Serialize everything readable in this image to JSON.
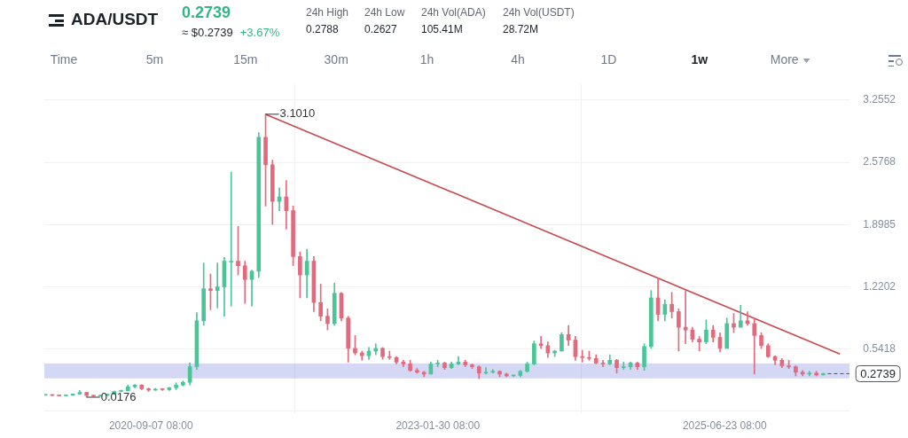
{
  "chart_data": {
    "type": "candlestick",
    "title": "ADA/USDT",
    "subtitle": "0.2739",
    "annotations": [
      "≈ $0.2739",
      "+3.67%",
      "24h High",
      "0.2788",
      "24h Low",
      "0.2627",
      "24h Vol(ADA)",
      "105.41M",
      "24h Vol(USDT)",
      "28.72M",
      "Time",
      "5m",
      "15m",
      "30m",
      "1h",
      "4h",
      "1D",
      "1w",
      "More",
      {
        "text": "3.1010",
        "x": "2021-08-23",
        "y": 3.101
      },
      {
        "text": "0.0176",
        "x": "2020-02-24",
        "y": 0.0176
      }
    ],
    "x": [
      "2019-10-21",
      "2019-11-11",
      "2019-12-02",
      "2019-12-23",
      "2020-01-13",
      "2020-02-03",
      "2020-02-24",
      "2020-03-16",
      "2020-04-06",
      "2020-04-27",
      "2020-05-18",
      "2020-06-08",
      "2020-06-29",
      "2020-07-20",
      "2020-08-10",
      "2020-08-31",
      "2020-09-21",
      "2020-10-12",
      "2020-11-02",
      "2020-11-23",
      "2020-12-14",
      "2021-01-04",
      "2021-01-25",
      "2021-02-15",
      "2021-03-08",
      "2021-03-29",
      "2021-04-19",
      "2021-05-10",
      "2021-05-31",
      "2021-06-21",
      "2021-07-12",
      "2021-08-02",
      "2021-08-23",
      "2021-09-13",
      "2021-10-04",
      "2021-10-25",
      "2021-11-15",
      "2021-12-06",
      "2021-12-27",
      "2022-01-17",
      "2022-02-07",
      "2022-02-28",
      "2022-03-21",
      "2022-04-11",
      "2022-05-02",
      "2022-05-23",
      "2022-06-13",
      "2022-07-04",
      "2022-07-25",
      "2022-08-15",
      "2022-09-05",
      "2022-09-26",
      "2022-10-17",
      "2022-11-07",
      "2022-11-28",
      "2022-12-19",
      "2023-01-09",
      "2023-01-30",
      "2023-02-20",
      "2023-03-13",
      "2023-04-03",
      "2023-04-24",
      "2023-05-15",
      "2023-06-05",
      "2023-06-26",
      "2023-07-17",
      "2023-08-07",
      "2023-08-28",
      "2023-09-18",
      "2023-10-09",
      "2023-10-30",
      "2023-11-20",
      "2023-12-11",
      "2024-01-01",
      "2024-01-22",
      "2024-02-12",
      "2024-03-04",
      "2024-03-25",
      "2024-04-15",
      "2024-05-06",
      "2024-05-27",
      "2024-06-17",
      "2024-07-08",
      "2024-07-29",
      "2024-08-19",
      "2024-09-09",
      "2024-09-30",
      "2024-10-21",
      "2024-11-11",
      "2024-12-02",
      "2024-12-23",
      "2025-01-13",
      "2025-02-03",
      "2025-02-24",
      "2025-03-17",
      "2025-04-07",
      "2025-04-28",
      "2025-05-19",
      "2025-06-09",
      "2025-06-30",
      "2025-07-21",
      "2025-08-11",
      "2025-09-01",
      "2025-09-22",
      "2025-10-13",
      "2025-11-03",
      "2025-11-24",
      "2025-12-15",
      "2026-01-05",
      "2026-01-26",
      "2026-02-16",
      "2026-03-09",
      "2026-03-30",
      "2026-04-20"
    ],
    "ohlc": [
      [
        0.04,
        0.046,
        0.037,
        0.042
      ],
      [
        0.042,
        0.045,
        0.035,
        0.037
      ],
      [
        0.037,
        0.04,
        0.032,
        0.033
      ],
      [
        0.033,
        0.04,
        0.032,
        0.038
      ],
      [
        0.038,
        0.055,
        0.037,
        0.052
      ],
      [
        0.052,
        0.089,
        0.05,
        0.07
      ],
      [
        0.07,
        0.072,
        0.0176,
        0.036
      ],
      [
        0.036,
        0.037,
        0.026,
        0.03
      ],
      [
        0.03,
        0.039,
        0.029,
        0.036
      ],
      [
        0.036,
        0.053,
        0.035,
        0.05
      ],
      [
        0.05,
        0.085,
        0.048,
        0.08
      ],
      [
        0.08,
        0.096,
        0.076,
        0.087
      ],
      [
        0.087,
        0.15,
        0.085,
        0.131
      ],
      [
        0.131,
        0.156,
        0.12,
        0.15
      ],
      [
        0.15,
        0.155,
        0.1,
        0.11
      ],
      [
        0.11,
        0.118,
        0.08,
        0.095
      ],
      [
        0.095,
        0.115,
        0.092,
        0.105
      ],
      [
        0.105,
        0.112,
        0.09,
        0.1
      ],
      [
        0.1,
        0.125,
        0.092,
        0.121
      ],
      [
        0.121,
        0.175,
        0.1,
        0.15
      ],
      [
        0.15,
        0.193,
        0.14,
        0.18
      ],
      [
        0.18,
        0.39,
        0.15,
        0.35
      ],
      [
        0.35,
        0.94,
        0.32,
        0.85
      ],
      [
        0.85,
        1.48,
        0.8,
        1.2
      ],
      [
        1.2,
        1.36,
        0.97,
        1.18
      ],
      [
        1.18,
        1.48,
        0.99,
        1.22
      ],
      [
        1.22,
        1.54,
        0.9,
        1.5
      ],
      [
        1.5,
        2.47,
        1.01,
        1.5
      ],
      [
        1.5,
        1.88,
        1.35,
        1.45
      ],
      [
        1.45,
        1.5,
        1.04,
        1.3
      ],
      [
        1.3,
        1.4,
        1.01,
        1.39
      ],
      [
        1.39,
        2.9,
        1.32,
        2.85
      ],
      [
        2.85,
        3.101,
        2.1,
        2.55
      ],
      [
        2.55,
        2.6,
        1.9,
        2.15
      ],
      [
        2.15,
        2.3,
        2.05,
        2.2
      ],
      [
        2.2,
        2.38,
        1.85,
        2.05
      ],
      [
        2.05,
        2.1,
        1.45,
        1.55
      ],
      [
        1.55,
        1.6,
        1.1,
        1.35
      ],
      [
        1.35,
        1.63,
        1.1,
        1.5
      ],
      [
        1.5,
        1.55,
        0.95,
        1.05
      ],
      [
        1.05,
        1.25,
        0.85,
        0.9
      ],
      [
        0.9,
        0.98,
        0.75,
        0.82
      ],
      [
        0.82,
        1.26,
        0.8,
        1.15
      ],
      [
        1.15,
        1.16,
        0.85,
        0.88
      ],
      [
        0.88,
        0.9,
        0.4,
        0.55
      ],
      [
        0.55,
        0.69,
        0.48,
        0.5
      ],
      [
        0.5,
        0.52,
        0.42,
        0.47
      ],
      [
        0.47,
        0.56,
        0.43,
        0.52
      ],
      [
        0.52,
        0.6,
        0.48,
        0.55
      ],
      [
        0.55,
        0.56,
        0.43,
        0.46
      ],
      [
        0.46,
        0.52,
        0.43,
        0.45
      ],
      [
        0.45,
        0.46,
        0.38,
        0.4
      ],
      [
        0.4,
        0.42,
        0.35,
        0.38
      ],
      [
        0.38,
        0.42,
        0.3,
        0.31
      ],
      [
        0.31,
        0.33,
        0.28,
        0.29
      ],
      [
        0.29,
        0.3,
        0.24,
        0.27
      ],
      [
        0.27,
        0.4,
        0.27,
        0.38
      ],
      [
        0.38,
        0.42,
        0.35,
        0.39
      ],
      [
        0.39,
        0.4,
        0.32,
        0.34
      ],
      [
        0.34,
        0.4,
        0.33,
        0.38
      ],
      [
        0.38,
        0.46,
        0.37,
        0.4
      ],
      [
        0.4,
        0.42,
        0.35,
        0.37
      ],
      [
        0.37,
        0.38,
        0.33,
        0.35
      ],
      [
        0.35,
        0.36,
        0.22,
        0.28
      ],
      [
        0.28,
        0.34,
        0.27,
        0.29
      ],
      [
        0.29,
        0.32,
        0.28,
        0.3
      ],
      [
        0.3,
        0.305,
        0.24,
        0.27
      ],
      [
        0.27,
        0.28,
        0.24,
        0.25
      ],
      [
        0.25,
        0.26,
        0.24,
        0.255
      ],
      [
        0.255,
        0.31,
        0.24,
        0.3
      ],
      [
        0.3,
        0.4,
        0.29,
        0.38
      ],
      [
        0.38,
        0.63,
        0.37,
        0.6
      ],
      [
        0.6,
        0.68,
        0.55,
        0.58
      ],
      [
        0.58,
        0.62,
        0.45,
        0.5
      ],
      [
        0.5,
        0.53,
        0.46,
        0.52
      ],
      [
        0.52,
        0.72,
        0.52,
        0.7
      ],
      [
        0.7,
        0.8,
        0.58,
        0.64
      ],
      [
        0.64,
        0.68,
        0.42,
        0.46
      ],
      [
        0.46,
        0.53,
        0.4,
        0.45
      ],
      [
        0.45,
        0.52,
        0.42,
        0.44
      ],
      [
        0.44,
        0.48,
        0.38,
        0.39
      ],
      [
        0.39,
        0.42,
        0.35,
        0.38
      ],
      [
        0.38,
        0.48,
        0.37,
        0.42
      ],
      [
        0.42,
        0.43,
        0.28,
        0.34
      ],
      [
        0.34,
        0.4,
        0.32,
        0.35
      ],
      [
        0.35,
        0.4,
        0.32,
        0.39
      ],
      [
        0.39,
        0.4,
        0.32,
        0.35
      ],
      [
        0.35,
        0.6,
        0.31,
        0.57
      ],
      [
        0.57,
        1.18,
        0.55,
        1.1
      ],
      [
        1.1,
        1.32,
        0.85,
        0.92
      ],
      [
        0.92,
        1.08,
        0.85,
        1.03
      ],
      [
        1.03,
        1.16,
        0.88,
        0.95
      ],
      [
        0.95,
        0.98,
        0.52,
        0.78
      ],
      [
        0.78,
        1.18,
        0.6,
        0.75
      ],
      [
        0.75,
        0.78,
        0.62,
        0.65
      ],
      [
        0.65,
        0.68,
        0.52,
        0.62
      ],
      [
        0.62,
        0.86,
        0.6,
        0.75
      ],
      [
        0.75,
        0.8,
        0.62,
        0.67
      ],
      [
        0.67,
        0.72,
        0.51,
        0.55
      ],
      [
        0.55,
        0.88,
        0.55,
        0.82
      ],
      [
        0.82,
        0.93,
        0.72,
        0.78
      ],
      [
        0.78,
        1.02,
        0.78,
        0.85
      ],
      [
        0.85,
        0.95,
        0.8,
        0.82
      ],
      [
        0.82,
        0.88,
        0.27,
        0.69
      ],
      [
        0.69,
        0.72,
        0.55,
        0.58
      ],
      [
        0.58,
        0.6,
        0.45,
        0.46
      ],
      [
        0.46,
        0.47,
        0.37,
        0.42
      ],
      [
        0.42,
        0.44,
        0.34,
        0.36
      ],
      [
        0.36,
        0.42,
        0.33,
        0.35
      ],
      [
        0.35,
        0.36,
        0.25,
        0.29
      ],
      [
        0.29,
        0.31,
        0.25,
        0.27
      ],
      [
        0.27,
        0.3,
        0.25,
        0.28
      ],
      [
        0.28,
        0.3,
        0.25,
        0.26
      ],
      [
        0.26,
        0.28,
        0.26,
        0.2739
      ]
    ],
    "series": [
      {
        "type": "line",
        "x": [
          "2021-08-23",
          "2026-06-08"
        ],
        "values": [
          3.1,
          0.49
        ],
        "color": "#c9484e"
      }
    ],
    "bands": [
      {
        "axis": "y",
        "from": 0.222,
        "to": 0.384,
        "color": "#4a5bd0"
      }
    ],
    "ref_lines": [
      {
        "axis": "y",
        "value": 0.2739,
        "label": "0.2739",
        "line_style": "dashed",
        "color": "#555555"
      }
    ],
    "xlim": [
      "2019-10-18",
      "2026-07-09"
    ],
    "xticks": [
      {
        "value": "2020-09-07T08:00",
        "label": "2020-09-07 08:00"
      },
      {
        "value": "2023-01-30T08:00",
        "label": "2023-01-30 08:00"
      },
      {
        "value": "2025-06-23T08:00",
        "label": "2025-06-23 08:00"
      }
    ],
    "ylim": [
      -0.166,
      3.426
    ],
    "yticks": [
      {
        "value": -0.1366,
        "label": null
      },
      0.5418,
      1.2202,
      1.8985,
      2.5768,
      3.2552
    ],
    "grid": true
  }
}
